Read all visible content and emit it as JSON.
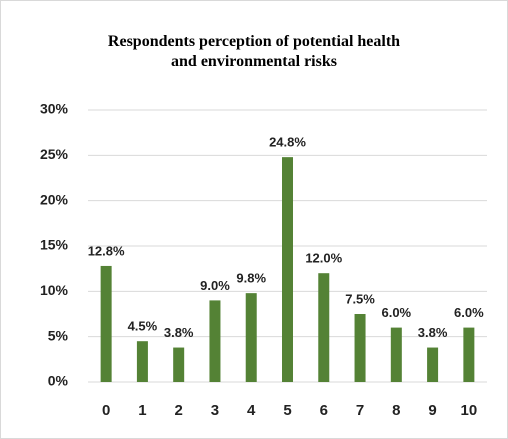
{
  "chart_data": {
    "type": "bar",
    "title": "Respondents perception of potential health and environmental risks",
    "categories": [
      "0",
      "1",
      "2",
      "3",
      "4",
      "5",
      "6",
      "7",
      "8",
      "9",
      "10"
    ],
    "values": [
      12.8,
      4.5,
      3.8,
      9.0,
      9.8,
      24.8,
      12.0,
      7.5,
      6.0,
      3.8,
      6.0
    ],
    "value_labels": [
      "12.8%",
      "4.5%",
      "3.8%",
      "9.0%",
      "9.8%",
      "24.8%",
      "12.0%",
      "7.5%",
      "6.0%",
      "3.8%",
      "6.0%"
    ],
    "color": "#548235",
    "ylim": [
      0,
      30
    ],
    "yticks": [
      {
        "value": 0,
        "label": "0%"
      },
      {
        "value": 5,
        "label": "5%"
      },
      {
        "value": 10,
        "label": "10%"
      },
      {
        "value": 15,
        "label": "15%"
      },
      {
        "value": 20,
        "label": "20%"
      },
      {
        "value": 25,
        "label": "25%"
      },
      {
        "value": 30,
        "label": "30%"
      }
    ],
    "grid": true
  }
}
